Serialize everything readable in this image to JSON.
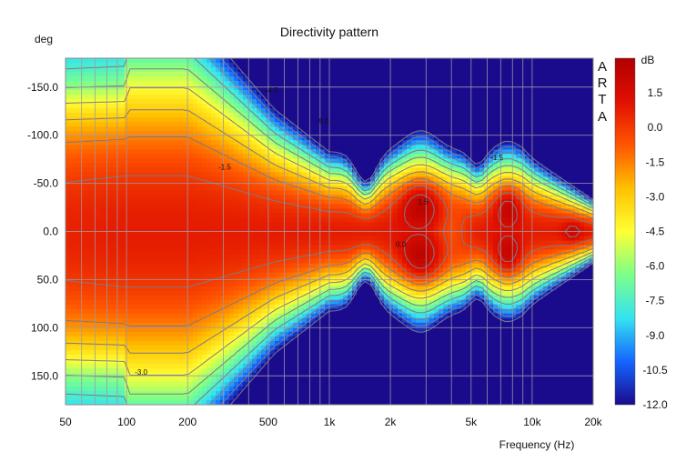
{
  "chart_data": {
    "type": "heatmap",
    "title": "Directivity pattern",
    "xlabel": "Frequency (Hz)",
    "ylabel": "deg",
    "x_scale": "log",
    "xlim": [
      50,
      20000
    ],
    "ylim": [
      -180,
      180
    ],
    "x_ticks": [
      50,
      100,
      200,
      500,
      1000,
      2000,
      5000,
      10000,
      20000
    ],
    "x_tick_labels": [
      "50",
      "100",
      "200",
      "500",
      "1k",
      "2k",
      "5k",
      "10k",
      "20k"
    ],
    "y_ticks": [
      -150,
      -100,
      -50,
      0,
      50,
      100,
      150
    ],
    "y_tick_labels": [
      "-150.0",
      "-100.0",
      "-50.0",
      "0.0",
      "50.0",
      "100.0",
      "150.0"
    ],
    "colorbar": {
      "label": "dB",
      "range": [
        -12.0,
        3.0
      ],
      "ticks": [
        1.5,
        0.0,
        -1.5,
        -3.0,
        -4.5,
        -6.0,
        -7.5,
        -9.0,
        -10.5,
        -12.0
      ],
      "tick_labels": [
        "1.5",
        "0.0",
        "-1.5",
        "-3.0",
        "-4.5",
        "-6.0",
        "-7.5",
        "-9.0",
        "-10.5",
        "-12.0"
      ],
      "colors": [
        "#1a0a8c",
        "#1466ff",
        "#35e3f0",
        "#7cff8a",
        "#ffff33",
        "#ffc000",
        "#ff5500",
        "#e01000",
        "#b00000"
      ]
    },
    "contour_labels": [
      {
        "text": "-4.5",
        "freq": 520,
        "deg": -147
      },
      {
        "text": "-9.0",
        "freq": 930,
        "deg": -115
      },
      {
        "text": "-1.5",
        "freq": 305,
        "deg": -67
      },
      {
        "text": "-1.5",
        "freq": 6700,
        "deg": -77
      },
      {
        "text": "1.5",
        "freq": 2900,
        "deg": -31
      },
      {
        "text": "0.0",
        "freq": 2250,
        "deg": 13
      },
      {
        "text": "-3.0",
        "freq": 118,
        "deg": 146
      }
    ],
    "grid": true,
    "watermark": "ARTA"
  }
}
